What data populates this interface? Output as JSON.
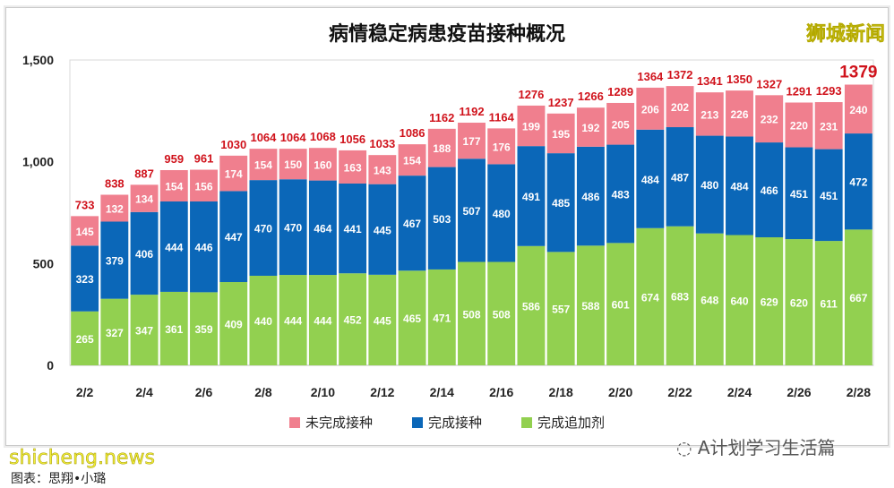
{
  "chart_data": {
    "type": "bar",
    "stacked": true,
    "title": "病情稳定病患疫苗接种概况",
    "categories": [
      "2/2",
      "2/3",
      "2/4",
      "2/5",
      "2/6",
      "2/7",
      "2/8",
      "2/9",
      "2/10",
      "2/11",
      "2/12",
      "2/13",
      "2/14",
      "2/15",
      "2/16",
      "2/17",
      "2/18",
      "2/19",
      "2/20",
      "2/21",
      "2/22",
      "2/23",
      "2/24",
      "2/25",
      "2/26",
      "2/27",
      "2/28"
    ],
    "x_tick_labels": [
      "2/2",
      "2/4",
      "2/6",
      "2/8",
      "2/10",
      "2/12",
      "2/14",
      "2/16",
      "2/18",
      "2/20",
      "2/22",
      "2/24",
      "2/26",
      "2/28"
    ],
    "y_tick_labels": [
      "0",
      "500",
      "1,000",
      "1,500"
    ],
    "ylim": [
      0,
      1500
    ],
    "grid": false,
    "legend_position": "bottom",
    "series": [
      {
        "name": "完成追加剂",
        "color": "#92d050",
        "values": [
          265,
          327,
          347,
          361,
          359,
          409,
          440,
          444,
          444,
          452,
          445,
          465,
          471,
          508,
          508,
          586,
          557,
          588,
          601,
          674,
          683,
          648,
          640,
          629,
          620,
          611,
          667
        ]
      },
      {
        "name": "完成接种",
        "color": "#0b67b8",
        "values": [
          323,
          379,
          406,
          444,
          446,
          447,
          470,
          470,
          464,
          441,
          445,
          467,
          503,
          507,
          480,
          491,
          485,
          486,
          483,
          484,
          487,
          480,
          484,
          466,
          451,
          451,
          472
        ]
      },
      {
        "name": "未完成接种",
        "color": "#f07f8e",
        "values": [
          145,
          132,
          134,
          154,
          156,
          174,
          154,
          150,
          160,
          163,
          143,
          154,
          188,
          177,
          176,
          199,
          195,
          192,
          205,
          206,
          202,
          213,
          226,
          232,
          220,
          231,
          240
        ]
      }
    ],
    "totals": [
      733,
      838,
      887,
      959,
      961,
      1030,
      1064,
      1064,
      1068,
      1056,
      1033,
      1086,
      1162,
      1192,
      1164,
      1276,
      1237,
      1266,
      1289,
      1364,
      1372,
      1341,
      1350,
      1327,
      1291,
      1293,
      1379
    ],
    "total_label_color": "#d0121b",
    "legend_order": [
      "未完成接种",
      "完成接种",
      "完成追加剂"
    ]
  },
  "watermarks": {
    "top_right": "狮城新闻",
    "bottom_left": "shicheng.news",
    "wechat": "A计划学习生活篇"
  },
  "credit": "图表：思翔•小璐"
}
